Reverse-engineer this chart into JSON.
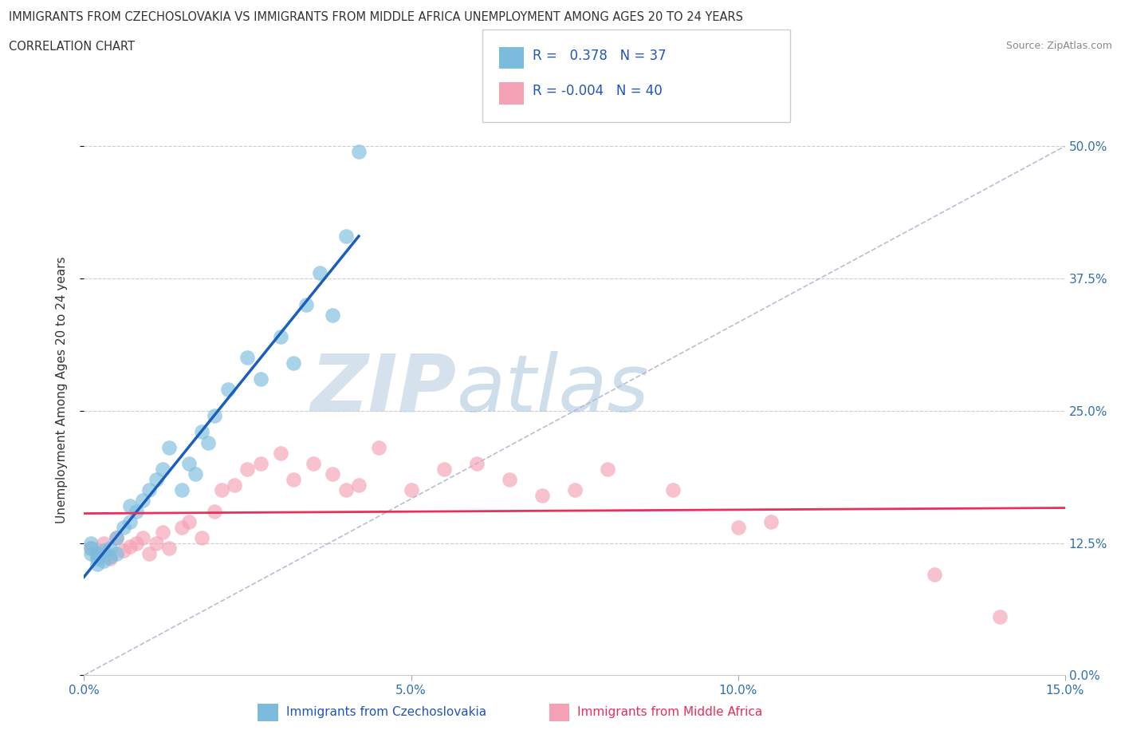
{
  "title_line1": "IMMIGRANTS FROM CZECHOSLOVAKIA VS IMMIGRANTS FROM MIDDLE AFRICA UNEMPLOYMENT AMONG AGES 20 TO 24 YEARS",
  "title_line2": "CORRELATION CHART",
  "source_text": "Source: ZipAtlas.com",
  "ylabel": "Unemployment Among Ages 20 to 24 years",
  "xlim": [
    0.0,
    0.15
  ],
  "ylim": [
    0.0,
    0.54
  ],
  "ytick_vals": [
    0.0,
    0.125,
    0.25,
    0.375,
    0.5
  ],
  "ytick_labels": [
    "0.0%",
    "12.5%",
    "25.0%",
    "37.5%",
    "50.0%"
  ],
  "xtick_vals": [
    0.0,
    0.05,
    0.1,
    0.15
  ],
  "xtick_labels": [
    "0.0%",
    "5.0%",
    "10.0%",
    "15.0%"
  ],
  "r_czech": 0.378,
  "n_czech": 37,
  "r_middle_africa": -0.004,
  "n_middle_africa": 40,
  "color_czech": "#7bbcdc",
  "color_middle_africa": "#f4a0b5",
  "color_czech_line": "#1a5fbb",
  "color_middle_africa_line": "#e8305a",
  "color_diag_line": "#b0b8d0",
  "legend_label_czech": "Immigrants from Czechoslovakia",
  "legend_label_middle_africa": "Immigrants from Middle Africa",
  "czech_x": [
    0.001,
    0.001,
    0.001,
    0.002,
    0.002,
    0.002,
    0.003,
    0.003,
    0.004,
    0.004,
    0.005,
    0.005,
    0.006,
    0.007,
    0.007,
    0.008,
    0.009,
    0.01,
    0.011,
    0.012,
    0.013,
    0.015,
    0.016,
    0.017,
    0.018,
    0.019,
    0.02,
    0.022,
    0.025,
    0.027,
    0.03,
    0.032,
    0.034,
    0.036,
    0.038,
    0.04,
    0.042
  ],
  "czech_y": [
    0.115,
    0.12,
    0.125,
    0.11,
    0.105,
    0.115,
    0.108,
    0.118,
    0.112,
    0.12,
    0.115,
    0.13,
    0.14,
    0.145,
    0.16,
    0.155,
    0.165,
    0.175,
    0.185,
    0.195,
    0.215,
    0.175,
    0.2,
    0.19,
    0.23,
    0.22,
    0.245,
    0.27,
    0.3,
    0.28,
    0.32,
    0.295,
    0.35,
    0.38,
    0.34,
    0.415,
    0.495
  ],
  "middle_africa_x": [
    0.001,
    0.002,
    0.003,
    0.004,
    0.005,
    0.006,
    0.007,
    0.008,
    0.009,
    0.01,
    0.011,
    0.012,
    0.013,
    0.015,
    0.016,
    0.018,
    0.02,
    0.021,
    0.023,
    0.025,
    0.027,
    0.03,
    0.032,
    0.035,
    0.038,
    0.04,
    0.042,
    0.045,
    0.05,
    0.055,
    0.06,
    0.065,
    0.07,
    0.075,
    0.08,
    0.09,
    0.1,
    0.105,
    0.13,
    0.14
  ],
  "middle_africa_y": [
    0.12,
    0.115,
    0.125,
    0.11,
    0.13,
    0.118,
    0.122,
    0.125,
    0.13,
    0.115,
    0.125,
    0.135,
    0.12,
    0.14,
    0.145,
    0.13,
    0.155,
    0.175,
    0.18,
    0.195,
    0.2,
    0.21,
    0.185,
    0.2,
    0.19,
    0.175,
    0.18,
    0.215,
    0.175,
    0.195,
    0.2,
    0.185,
    0.17,
    0.175,
    0.195,
    0.175,
    0.14,
    0.145,
    0.095,
    0.055
  ],
  "diag_line_x": [
    0.0,
    0.15
  ],
  "diag_line_y": [
    0.0,
    0.5
  ]
}
